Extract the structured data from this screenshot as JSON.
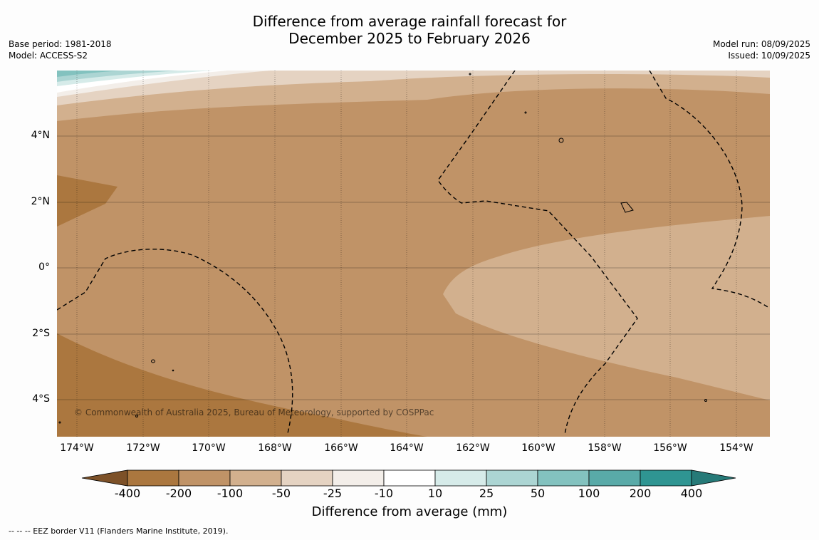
{
  "title_line1": "Difference from average rainfall forecast for",
  "title_line2": "December 2025 to February 2026",
  "base_period": "Base period: 1981-2018",
  "model": "Model: ACCESS-S2",
  "model_run": "Model run: 08/09/2025",
  "issued": "Issued: 10/09/2025",
  "copyright": "© Commonwealth of Australia 2025, Bureau of Meteorology, supported by COSPPac",
  "lat_labels": [
    "4°N",
    "2°N",
    "0°",
    "2°S",
    "4°S"
  ],
  "lon_labels": [
    "174°W",
    "172°W",
    "170°W",
    "168°W",
    "166°W",
    "164°W",
    "162°W",
    "160°W",
    "158°W",
    "156°W",
    "154°W"
  ],
  "colorbar": {
    "ticks": [
      "-400",
      "-200",
      "-100",
      "-50",
      "-25",
      "-10",
      "10",
      "25",
      "50",
      "100",
      "200",
      "400"
    ],
    "colors": [
      "#7d5128",
      "#ab773f",
      "#c09367",
      "#d2b08e",
      "#e5d3c2",
      "#f3eee9",
      "#ffffff",
      "#d6ebe9",
      "#acd5d3",
      "#83c2bf",
      "#59aaa8",
      "#2f9592",
      "#267a78"
    ],
    "title": "Difference from average (mm)"
  },
  "footnote": "-- -- -- EEZ border V11 (Flanders Marine Institute, 2019)."
}
